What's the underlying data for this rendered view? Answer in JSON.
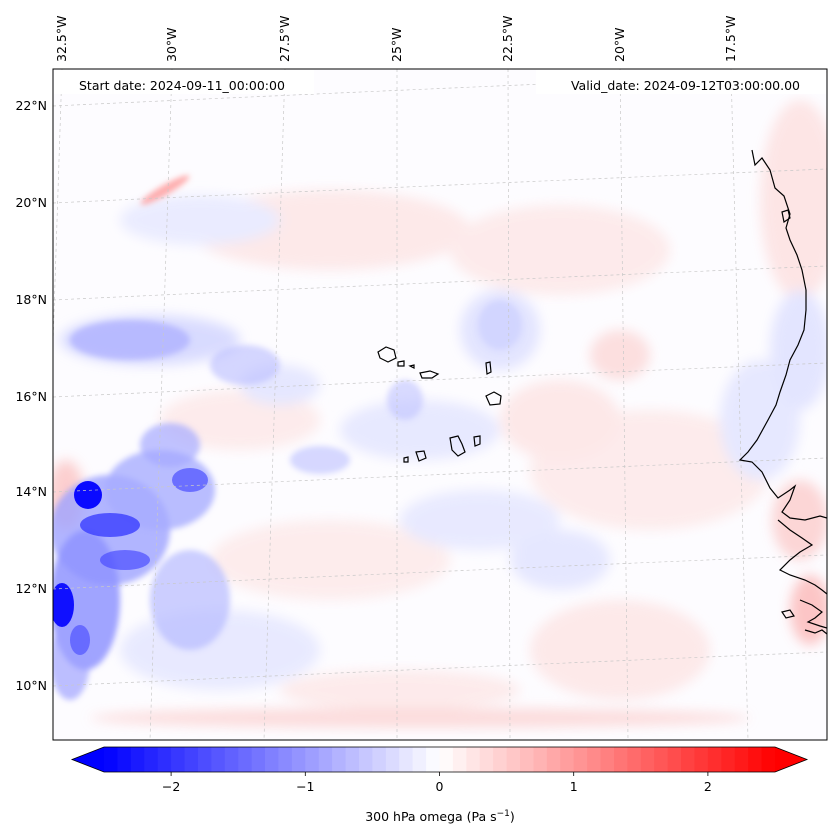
{
  "map": {
    "start_date_label": "Start date: 2024-09-11_00:00:00",
    "valid_date_label": "Valid_date: 2024-09-12T03:00:00.00",
    "lon_ticks": [
      "32.5°W",
      "30°W",
      "27.5°W",
      "25°W",
      "22.5°W",
      "20°W",
      "17.5°W"
    ],
    "lat_ticks": [
      "22°N",
      "20°N",
      "18°N",
      "16°N",
      "14°N",
      "12°N",
      "10°N"
    ],
    "lon_values": [
      -32.5,
      -30,
      -27.5,
      -25,
      -22.5,
      -20,
      -17.5
    ],
    "lat_values": [
      22,
      20,
      18,
      16,
      14,
      12,
      10
    ],
    "colors": {
      "negative": "#0000ff",
      "positive": "#ff0000",
      "neutral": "#ffffff",
      "coastline": "#000000",
      "gridline": "#c8c8c8"
    }
  },
  "colorbar": {
    "min": -2.5,
    "max": 2.5,
    "tick_values": [
      -2,
      -1,
      0,
      1,
      2
    ],
    "tick_labels": [
      "−2",
      "−1",
      "0",
      "1",
      "2"
    ],
    "label_main": "300 hPa omega (Pa s",
    "label_sup": "−1",
    "label_end": ")"
  }
}
